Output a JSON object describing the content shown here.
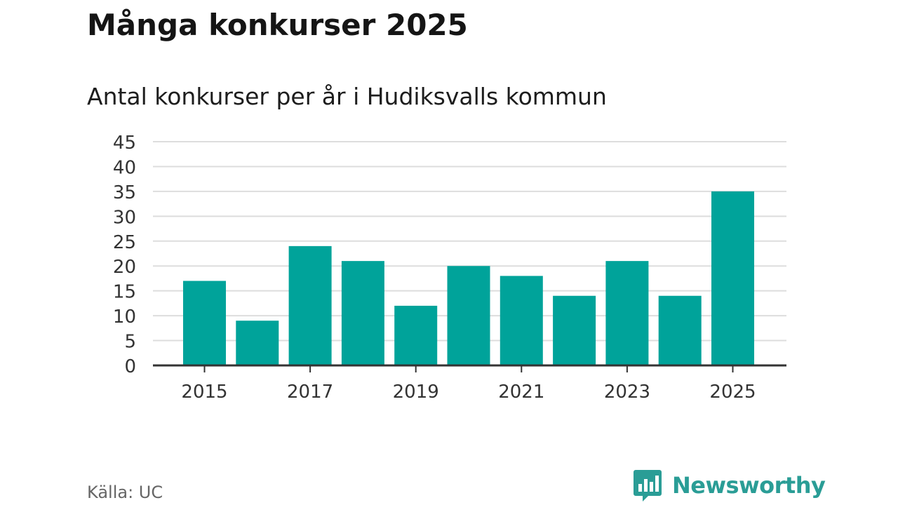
{
  "title": "Många konkurser 2025",
  "chart_data": {
    "type": "bar",
    "title": "Många konkurser 2025",
    "subtitle": "Antal konkurser per år i Hudiksvalls kommun",
    "xlabel": "",
    "ylabel": "",
    "categories": [
      "2015",
      "2016",
      "2017",
      "2018",
      "2019",
      "2020",
      "2021",
      "2022",
      "2023",
      "2024",
      "2025"
    ],
    "values": [
      17,
      9,
      24,
      21,
      12,
      20,
      18,
      14,
      21,
      14,
      35
    ],
    "x_tick_labels": [
      "2015",
      "2017",
      "2019",
      "2021",
      "2023",
      "2025"
    ],
    "y_ticks": [
      0,
      5,
      10,
      15,
      20,
      25,
      30,
      35,
      40,
      45
    ],
    "ylim": [
      0,
      45
    ],
    "grid": true,
    "bar_color": "#00a39a"
  },
  "source": "Källa: UC",
  "logo": {
    "text": "Newsworthy",
    "icon": "newsworthy-chart-icon",
    "color": "#2a9d96"
  }
}
